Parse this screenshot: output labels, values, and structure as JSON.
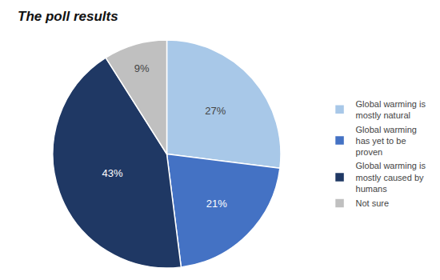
{
  "chart_data": {
    "type": "pie",
    "title": "The poll results",
    "categories": [
      "Global warming is\nmostly natural",
      "Global warming\nhas yet to be\nproven",
      "Global warming is\nmostly caused by\nhumans",
      "Not sure"
    ],
    "values": [
      27,
      21,
      43,
      9
    ],
    "value_labels": [
      "27%",
      "21%",
      "43%",
      "9%"
    ],
    "data_labels": true,
    "colors": [
      "#a8c8e8",
      "#4472c4",
      "#1f3864",
      "#c0c0c0"
    ],
    "legend": "right"
  }
}
